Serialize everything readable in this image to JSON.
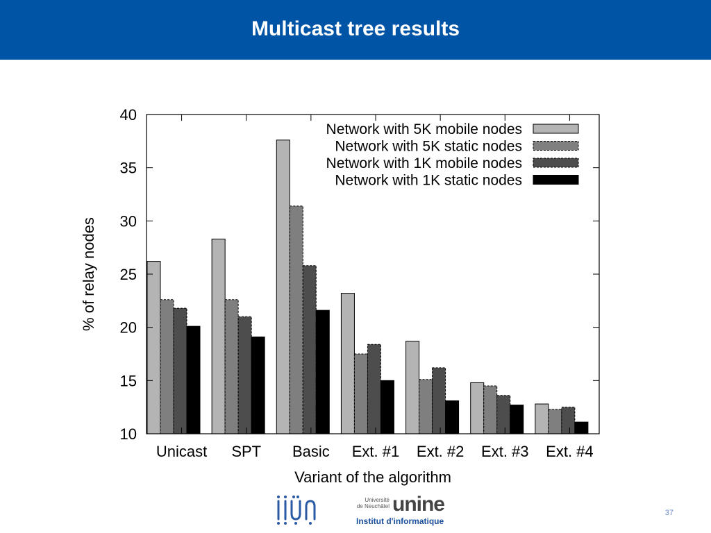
{
  "slide": {
    "title": "Multicast tree results",
    "page_number": "37",
    "header_color": "#0054a6"
  },
  "logos": {
    "iiun_color": "#2a5aa6",
    "university_line1": "Université",
    "university_line2": "de Neuchâtel",
    "unine_word": "unine",
    "institut": "Institut d'informatique"
  },
  "chart_data": {
    "type": "bar",
    "title": "",
    "xlabel": "Variant of the algorithm",
    "ylabel": "% of relay nodes",
    "ylim": [
      10,
      40
    ],
    "yticks": [
      10,
      15,
      20,
      25,
      30,
      35,
      40
    ],
    "categories": [
      "Unicast",
      "SPT",
      "Basic",
      "Ext. #1",
      "Ext. #2",
      "Ext. #3",
      "Ext. #4"
    ],
    "legend_position": "top-right",
    "grid": false,
    "series": [
      {
        "name": "Network with 5K mobile nodes",
        "color": "#b4b4b4",
        "dashed": false,
        "values": [
          26.2,
          28.3,
          37.6,
          23.2,
          18.7,
          14.8,
          12.8
        ]
      },
      {
        "name": "Network with 5K static nodes",
        "color": "#7f7f7f",
        "dashed": true,
        "values": [
          22.6,
          22.6,
          31.4,
          17.5,
          15.1,
          14.5,
          12.3
        ]
      },
      {
        "name": "Network with 1K mobile nodes",
        "color": "#4d4d4d",
        "dashed": true,
        "values": [
          21.8,
          21.0,
          25.8,
          18.4,
          16.2,
          13.6,
          12.5
        ]
      },
      {
        "name": "Network with 1K static nodes",
        "color": "#000000",
        "dashed": false,
        "values": [
          20.1,
          19.1,
          21.6,
          15.0,
          13.1,
          12.7,
          11.1
        ]
      }
    ]
  }
}
